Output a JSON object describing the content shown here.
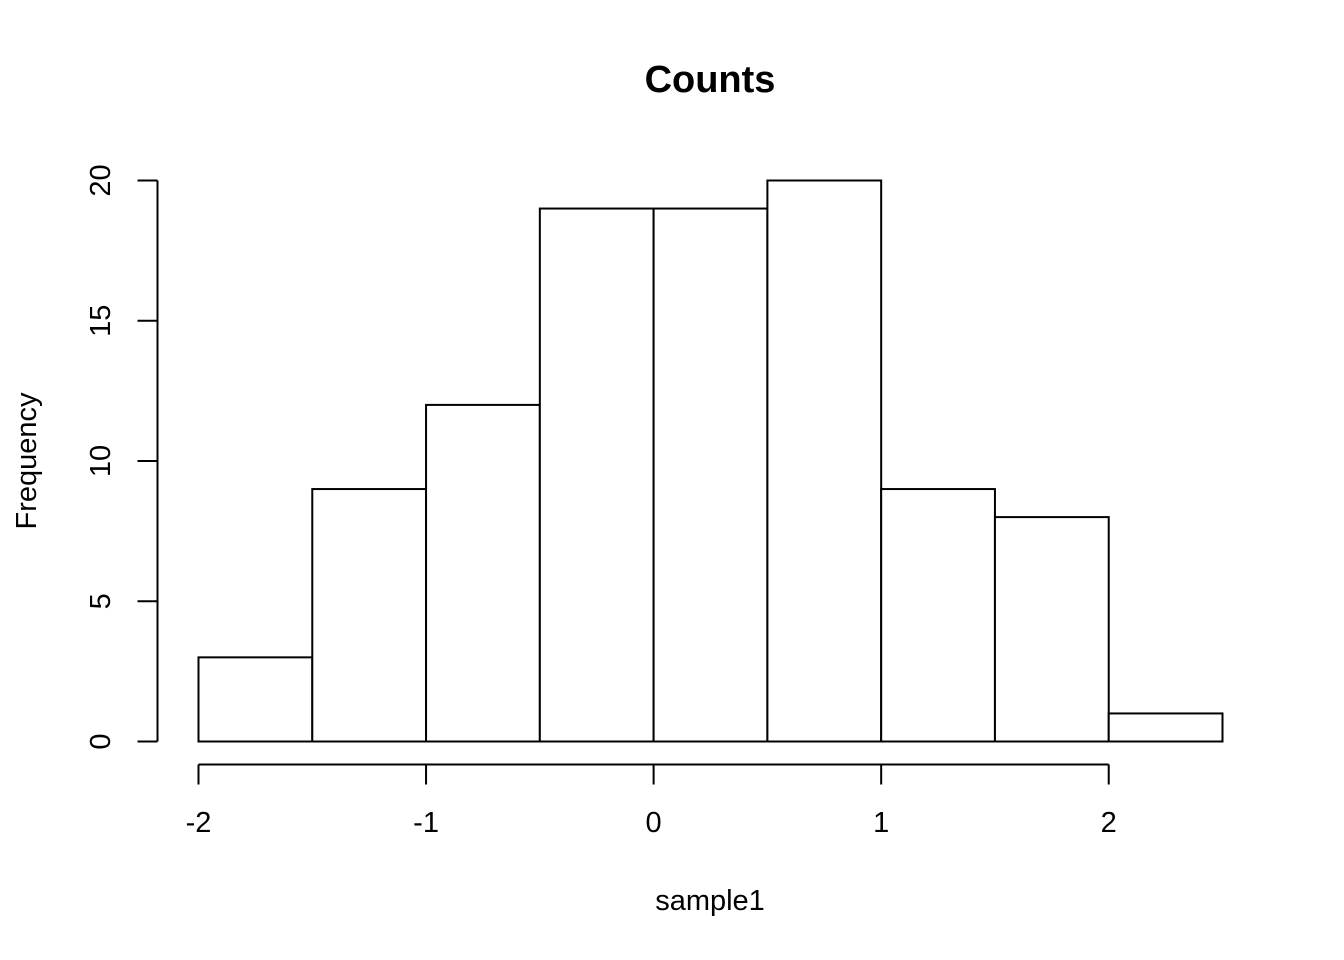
{
  "chart_data": {
    "type": "bar",
    "subtype": "histogram",
    "title": "Counts",
    "xlabel": "sample1",
    "ylabel": "Frequency",
    "bins": [
      {
        "from": -2.0,
        "to": -1.5,
        "count": 3
      },
      {
        "from": -1.5,
        "to": -1.0,
        "count": 9
      },
      {
        "from": -1.0,
        "to": -0.5,
        "count": 12
      },
      {
        "from": -0.5,
        "to": 0.0,
        "count": 19
      },
      {
        "from": 0.0,
        "to": 0.5,
        "count": 19
      },
      {
        "from": 0.5,
        "to": 1.0,
        "count": 20
      },
      {
        "from": 1.0,
        "to": 1.5,
        "count": 9
      },
      {
        "from": 1.5,
        "to": 2.0,
        "count": 8
      },
      {
        "from": 2.0,
        "to": 2.5,
        "count": 1
      }
    ],
    "x_ticks": [
      -2,
      -1,
      0,
      1,
      2
    ],
    "x_tick_labels": [
      "-2",
      "-1",
      "0",
      "1",
      "2"
    ],
    "y_ticks": [
      0,
      5,
      10,
      15,
      20
    ],
    "y_tick_labels": [
      "0",
      "5",
      "10",
      "15",
      "20"
    ],
    "xlim": [
      -2.0,
      2.5
    ],
    "ylim": [
      0,
      20
    ],
    "grid": false,
    "legend": "none",
    "colors": {
      "bar_fill": "#ffffff",
      "bar_stroke": "#000000",
      "axis": "#000000",
      "background": "#ffffff"
    }
  }
}
